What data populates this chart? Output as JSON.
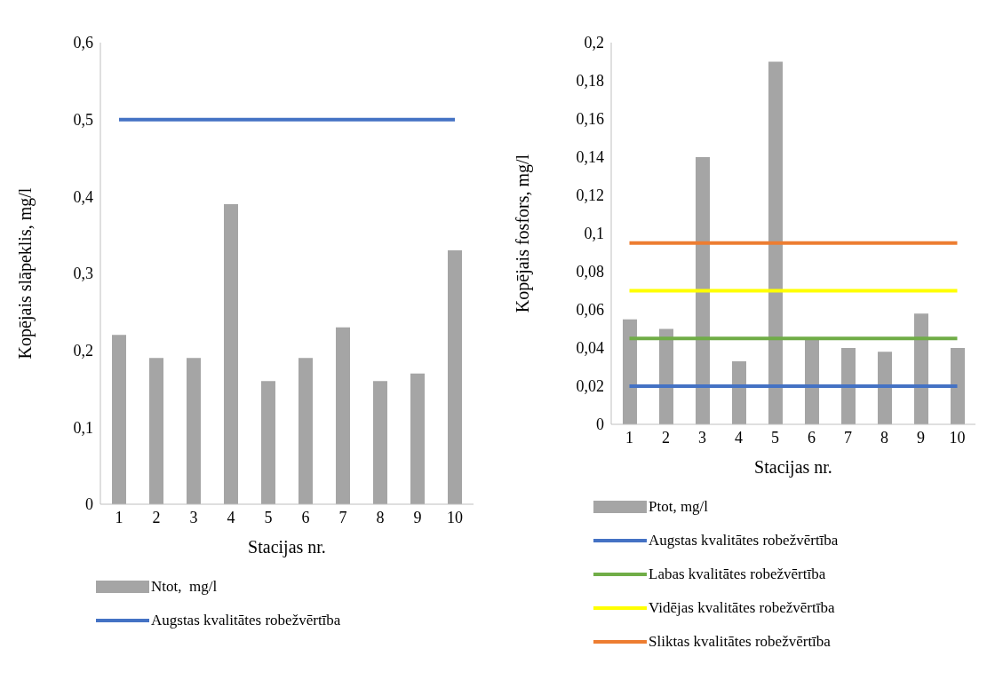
{
  "chart_data": [
    {
      "type": "bar",
      "xlabel": "Stacijas nr.",
      "ylabel": "Kopējais slāpeklis, mg/l",
      "categories": [
        "1",
        "2",
        "3",
        "4",
        "5",
        "6",
        "7",
        "8",
        "9",
        "10"
      ],
      "ylim": [
        0,
        0.6
      ],
      "yticks": [
        {
          "value": 0,
          "label": "0"
        },
        {
          "value": 0.1,
          "label": "0,1"
        },
        {
          "value": 0.2,
          "label": "0,2"
        },
        {
          "value": 0.3,
          "label": "0,3"
        },
        {
          "value": 0.4,
          "label": "0,4"
        },
        {
          "value": 0.5,
          "label": "0,5"
        },
        {
          "value": 0.6,
          "label": "0,6"
        }
      ],
      "grid": false,
      "legend": "bottom",
      "marker": "none",
      "series": [
        {
          "name": "Ntot,  mg/l",
          "color": "#a5a5a5",
          "values": [
            0.22,
            0.19,
            0.19,
            0.39,
            0.16,
            0.19,
            0.23,
            0.16,
            0.17,
            0.33
          ]
        },
        {
          "name": "Augstas kvalitātes robežvērtība",
          "type": "line",
          "color": "#4472c4",
          "values": [
            0.5,
            0.5,
            0.5,
            0.5,
            0.5,
            0.5,
            0.5,
            0.5,
            0.5,
            0.5
          ]
        }
      ]
    },
    {
      "type": "bar",
      "xlabel": "Stacijas nr.",
      "ylabel": "Kopējais fosfors, mg/l",
      "categories": [
        "1",
        "2",
        "3",
        "4",
        "5",
        "6",
        "7",
        "8",
        "9",
        "10"
      ],
      "ylim": [
        0,
        0.2
      ],
      "yticks": [
        {
          "value": 0,
          "label": "0"
        },
        {
          "value": 0.02,
          "label": "0,02"
        },
        {
          "value": 0.04,
          "label": "0,04"
        },
        {
          "value": 0.06,
          "label": "0,06"
        },
        {
          "value": 0.08,
          "label": "0,08"
        },
        {
          "value": 0.1,
          "label": "0,1"
        },
        {
          "value": 0.12,
          "label": "0,12"
        },
        {
          "value": 0.14,
          "label": "0,14"
        },
        {
          "value": 0.16,
          "label": "0,16"
        },
        {
          "value": 0.18,
          "label": "0,18"
        },
        {
          "value": 0.2,
          "label": "0,2"
        }
      ],
      "grid": false,
      "legend": "bottom",
      "marker": "none",
      "series": [
        {
          "name": "Ptot, mg/l",
          "color": "#a5a5a5",
          "values": [
            0.055,
            0.05,
            0.14,
            0.033,
            0.19,
            0.045,
            0.04,
            0.038,
            0.058,
            0.04
          ]
        },
        {
          "name": "Augstas kvalitātes robežvērtība",
          "type": "line",
          "color": "#4472c4",
          "values": [
            0.02,
            0.02,
            0.02,
            0.02,
            0.02,
            0.02,
            0.02,
            0.02,
            0.02,
            0.02
          ]
        },
        {
          "name": "Labas kvalitātes robežvērtība",
          "type": "line",
          "color": "#70ad47",
          "values": [
            0.045,
            0.045,
            0.045,
            0.045,
            0.045,
            0.045,
            0.045,
            0.045,
            0.045,
            0.045
          ]
        },
        {
          "name": "Vidējas kvalitātes robežvērtība",
          "type": "line",
          "color": "#ffff00",
          "values": [
            0.07,
            0.07,
            0.07,
            0.07,
            0.07,
            0.07,
            0.07,
            0.07,
            0.07,
            0.07
          ]
        },
        {
          "name": "Sliktas kvalitātes robežvērtība",
          "type": "line",
          "color": "#ed7d31",
          "values": [
            0.095,
            0.095,
            0.095,
            0.095,
            0.095,
            0.095,
            0.095,
            0.095,
            0.095,
            0.095
          ]
        }
      ]
    }
  ]
}
